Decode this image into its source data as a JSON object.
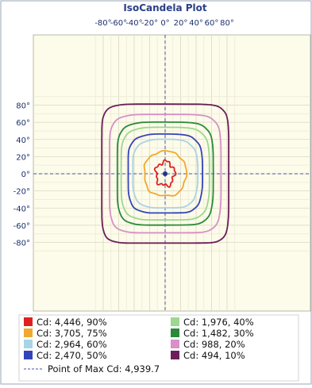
{
  "chart_data": {
    "type": "line",
    "title": "IsoCandela Plot",
    "x_ticks": [
      "-80°",
      "-60°",
      "-40°",
      "-20°",
      "0°",
      "20°",
      "40°",
      "60°",
      "80°"
    ],
    "y_ticks": [
      "80°",
      "60°",
      "40°",
      "20°",
      "0°",
      "-20°",
      "-40°",
      "-60°",
      "-80°"
    ],
    "xlim": [
      -90,
      90
    ],
    "ylim": [
      -90,
      90
    ],
    "grid": true,
    "legend_position": "bottom",
    "series": [
      {
        "name": "Cd: 4,446, 90%",
        "candela": 4446,
        "percent": 90,
        "color": "#e02020",
        "half_width_deg": 12,
        "half_height_deg": 14,
        "exponent": 2,
        "wobble": 0.22
      },
      {
        "name": "Cd: 3,705, 75%",
        "candela": 3705,
        "percent": 75,
        "color": "#f0a830",
        "half_width_deg": 27,
        "half_height_deg": 26,
        "exponent": 2.3,
        "wobble": 0.05
      },
      {
        "name": "Cd: 2,964, 60%",
        "candela": 2964,
        "percent": 60,
        "color": "#a8d4e6",
        "half_width_deg": 42,
        "half_height_deg": 40,
        "exponent": 3.5,
        "wobble": 0.01
      },
      {
        "name": "Cd: 2,470, 50%",
        "candela": 2470,
        "percent": 50,
        "color": "#3344b8",
        "half_width_deg": 48,
        "half_height_deg": 46,
        "exponent": 4,
        "wobble": 0.01
      },
      {
        "name": "Cd: 1,976, 40%",
        "candela": 1976,
        "percent": 40,
        "color": "#9cd890",
        "half_width_deg": 57,
        "half_height_deg": 54,
        "exponent": 4.5,
        "wobble": 0.005
      },
      {
        "name": "Cd: 1,482, 30%",
        "candela": 1482,
        "percent": 30,
        "color": "#2a8a3a",
        "half_width_deg": 62,
        "half_height_deg": 60,
        "exponent": 5,
        "wobble": 0.005
      },
      {
        "name": "Cd: 988, 20%",
        "candela": 988,
        "percent": 20,
        "color": "#d890c8",
        "half_width_deg": 72,
        "half_height_deg": 69,
        "exponent": 6,
        "wobble": 0.004
      },
      {
        "name": "Cd: 494, 10%",
        "candela": 494,
        "percent": 10,
        "color": "#6a1f5a",
        "half_width_deg": 82,
        "half_height_deg": 81,
        "exponent": 8,
        "wobble": 0.003
      }
    ],
    "max_point": {
      "label": "Point of Max Cd: 4,939.7",
      "x_deg": 0,
      "y_deg": 0,
      "line_color": "#4455aa"
    }
  }
}
